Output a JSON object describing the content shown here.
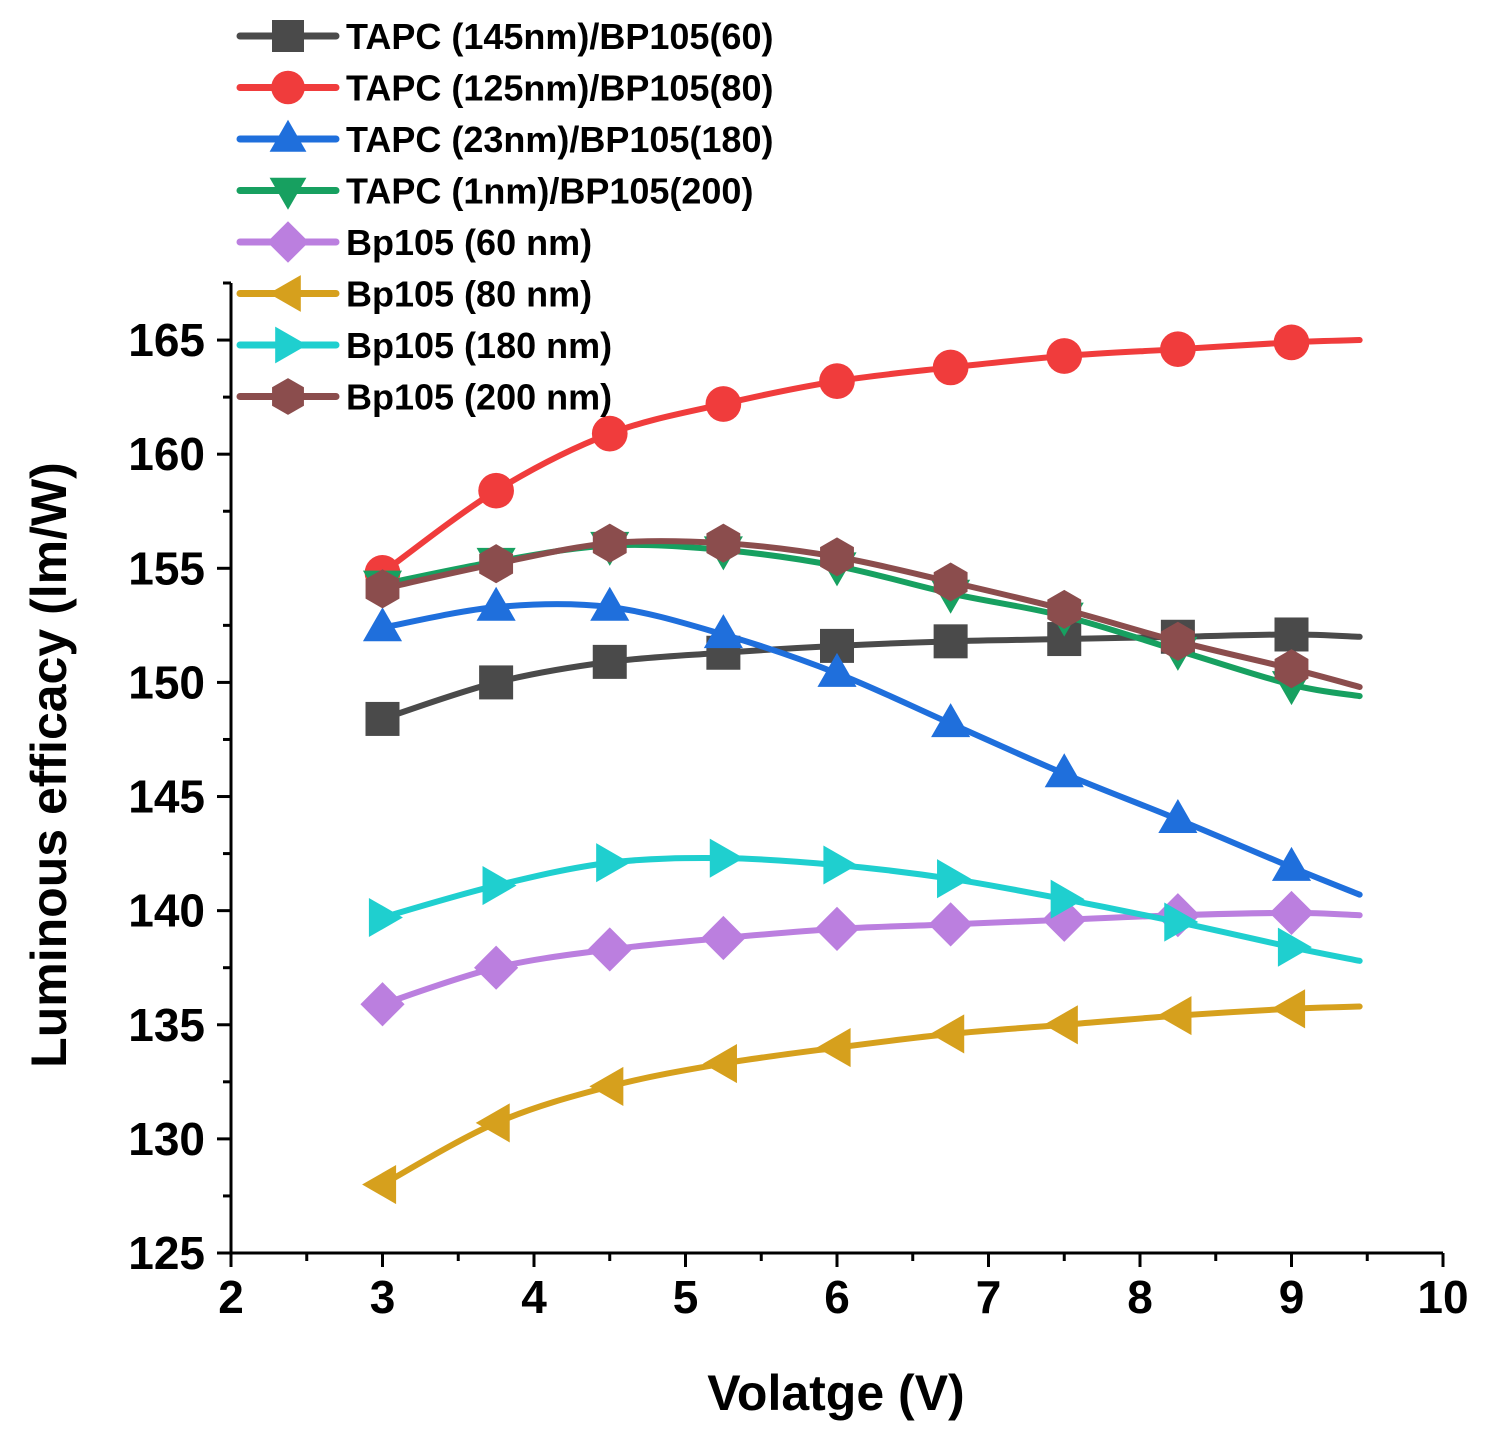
{
  "chart_data": {
    "type": "line",
    "xlabel": "Volatge (V)",
    "ylabel": "Luminous efficacy (lm/W)",
    "xlim": [
      2,
      10
    ],
    "ylim": [
      125,
      167.5
    ],
    "xticks": [
      2,
      3,
      4,
      5,
      6,
      7,
      8,
      9,
      10
    ],
    "yticks": [
      125,
      130,
      135,
      140,
      145,
      150,
      155,
      160,
      165
    ],
    "x": [
      3,
      3.75,
      4.5,
      5.25,
      6,
      6.75,
      7.5,
      8.25,
      9,
      9.45
    ],
    "legend_position": "top-left",
    "series": [
      {
        "name": "TAPC (145nm)/BP105(60)",
        "color": "#4a4a4a",
        "marker": "square",
        "values": [
          148.4,
          150.0,
          150.9,
          151.3,
          151.6,
          151.8,
          151.9,
          152.0,
          152.1,
          152.0
        ]
      },
      {
        "name": "TAPC (125nm)/BP105(80)",
        "color": "#f03c3c",
        "marker": "circle",
        "values": [
          154.8,
          158.4,
          160.9,
          162.2,
          163.2,
          163.8,
          164.3,
          164.6,
          164.9,
          165.0
        ]
      },
      {
        "name": "TAPC (23nm)/BP105(180)",
        "color": "#1f6fdc",
        "marker": "triangle-up",
        "values": [
          152.4,
          153.3,
          153.3,
          152.1,
          150.4,
          148.2,
          146.0,
          144.0,
          141.9,
          140.7
        ]
      },
      {
        "name": "TAPC (1nm)/BP105(200)",
        "color": "#17a060",
        "marker": "triangle-down",
        "values": [
          154.3,
          155.3,
          156.0,
          155.8,
          155.1,
          153.9,
          152.9,
          151.4,
          149.9,
          149.4
        ]
      },
      {
        "name": "Bp105 (60 nm)",
        "color": "#bb7fdf",
        "marker": "diamond",
        "values": [
          135.9,
          137.5,
          138.3,
          138.8,
          139.2,
          139.4,
          139.6,
          139.8,
          139.9,
          139.8
        ]
      },
      {
        "name": "Bp105 (80 nm)",
        "color": "#d6a01d",
        "marker": "triangle-left",
        "values": [
          128.0,
          130.7,
          132.3,
          133.3,
          134.0,
          134.6,
          135.0,
          135.4,
          135.7,
          135.8
        ]
      },
      {
        "name": "Bp105 (180 nm)",
        "color": "#1fcfcf",
        "marker": "triangle-right",
        "values": [
          139.7,
          141.1,
          142.1,
          142.3,
          142.0,
          141.4,
          140.5,
          139.5,
          138.4,
          137.8
        ]
      },
      {
        "name": "Bp105 (200 nm)",
        "color": "#8b4d4d",
        "marker": "hexagon",
        "values": [
          154.1,
          155.2,
          156.1,
          156.1,
          155.5,
          154.4,
          153.2,
          151.8,
          150.6,
          149.8
        ]
      }
    ]
  }
}
